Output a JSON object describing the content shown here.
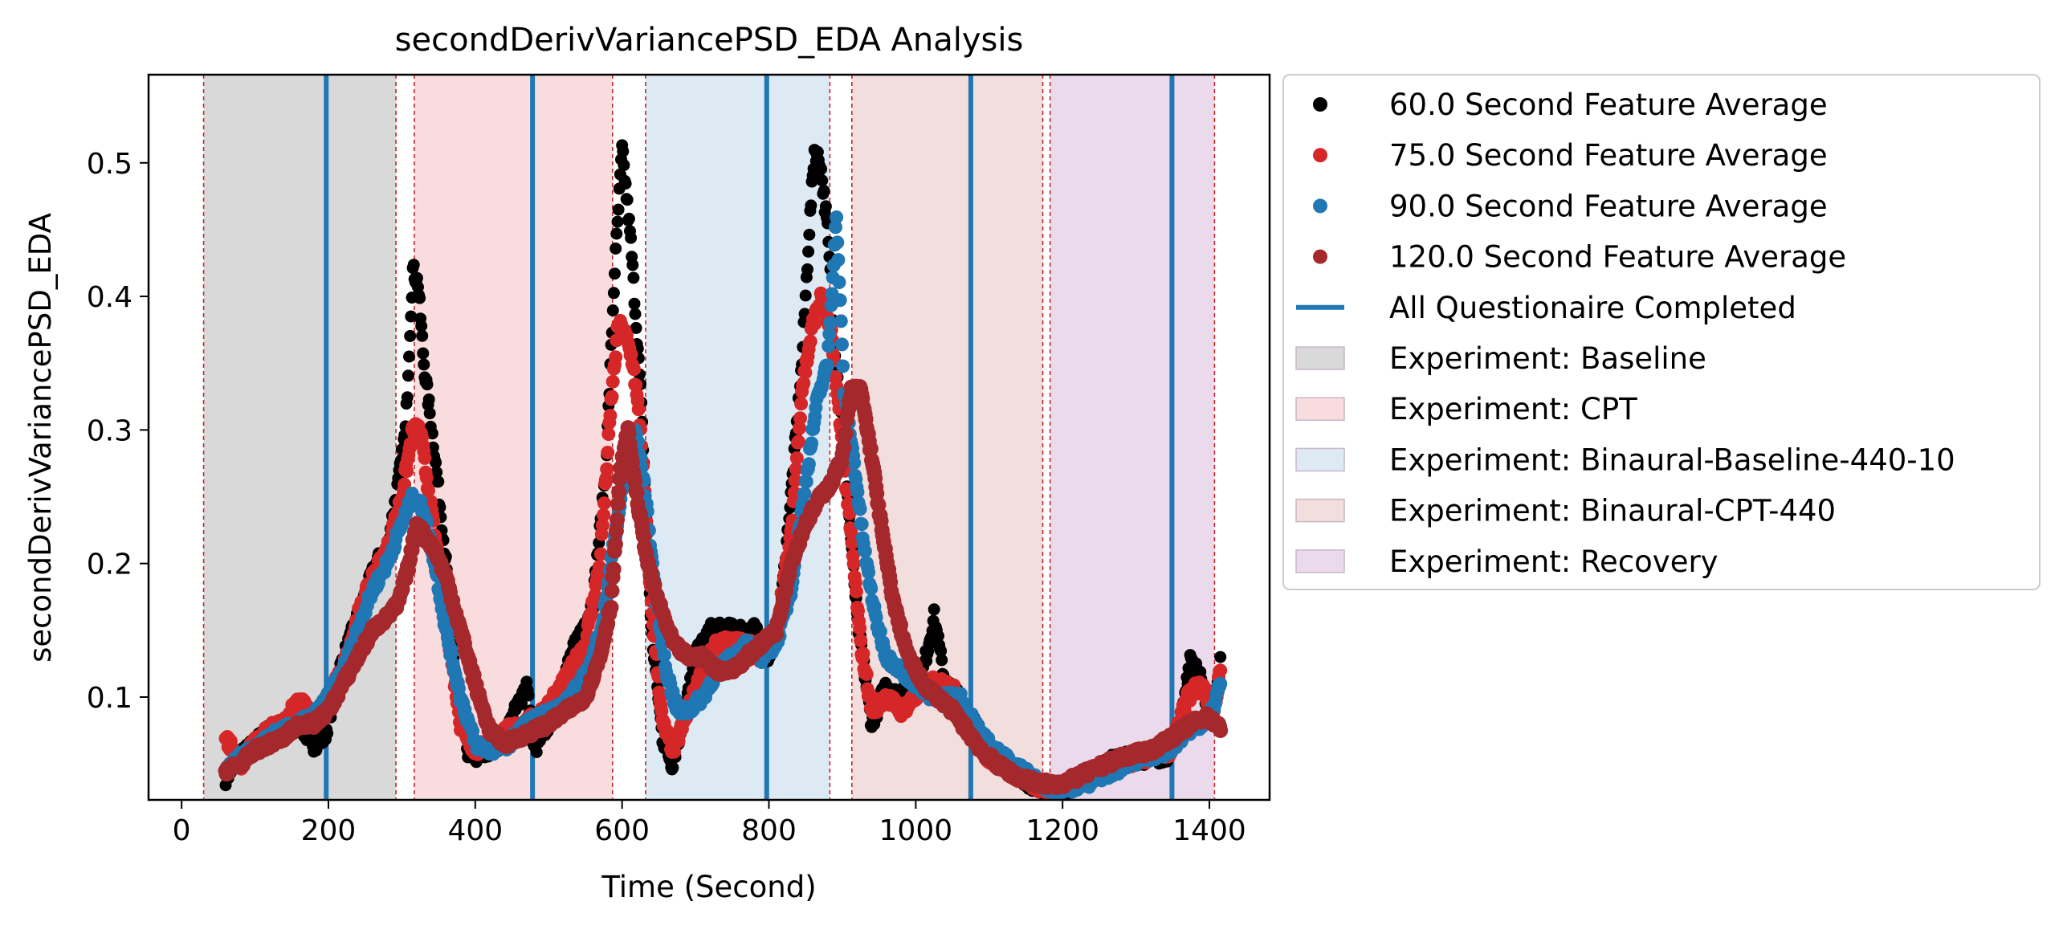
{
  "chart_data": {
    "type": "scatter",
    "title": "secondDerivVariancePSD_EDA Analysis",
    "xlabel": "Time (Second)",
    "ylabel": "secondDerivVariancePSD_EDA",
    "xlim": [
      -45,
      1482
    ],
    "ylim": [
      0.023,
      0.566
    ],
    "xticks": [
      0,
      200,
      400,
      600,
      800,
      1000,
      1200,
      1400
    ],
    "yticks": [
      0.1,
      0.2,
      0.3,
      0.4,
      0.5
    ],
    "grid": false,
    "legend_position": "outside-right",
    "regions": [
      {
        "name": "Experiment: Baseline",
        "start": 30,
        "end": 292,
        "color": "#d9d9d9"
      },
      {
        "name": "Experiment: CPT",
        "start": 317,
        "end": 587,
        "color": "#f9dcdd"
      },
      {
        "name": "Experiment: Binaural-Baseline-440-10",
        "start": 632,
        "end": 883,
        "color": "#dde9f3"
      },
      {
        "name": "Experiment: Binaural-CPT-440",
        "start": 913,
        "end": 1173,
        "color": "#f1dedd"
      },
      {
        "name": "Experiment: Recovery",
        "start": 1183,
        "end": 1407,
        "color": "#ebdaec"
      }
    ],
    "region_boundaries": [
      30,
      292,
      317,
      587,
      632,
      883,
      913,
      1173,
      1183,
      1407
    ],
    "questionnaire_lines": {
      "name": "All Questionaire Completed",
      "x": [
        197,
        478,
        797,
        1075,
        1349
      ],
      "color": "#1f77b4"
    },
    "series": [
      {
        "name": "60.0 Second Feature Average",
        "color": "#000000",
        "points": [
          [
            60,
            0.04
          ],
          [
            80,
            0.055
          ],
          [
            100,
            0.065
          ],
          [
            120,
            0.075
          ],
          [
            140,
            0.07
          ],
          [
            160,
            0.08
          ],
          [
            180,
            0.065
          ],
          [
            195,
            0.07
          ],
          [
            215,
            0.12
          ],
          [
            240,
            0.16
          ],
          [
            265,
            0.2
          ],
          [
            280,
            0.21
          ],
          [
            295,
            0.26
          ],
          [
            305,
            0.3
          ],
          [
            315,
            0.42
          ],
          [
            322,
            0.41
          ],
          [
            330,
            0.35
          ],
          [
            345,
            0.28
          ],
          [
            360,
            0.2
          ],
          [
            375,
            0.1
          ],
          [
            390,
            0.06
          ],
          [
            405,
            0.055
          ],
          [
            420,
            0.06
          ],
          [
            440,
            0.07
          ],
          [
            455,
            0.09
          ],
          [
            470,
            0.11
          ],
          [
            480,
            0.06
          ],
          [
            500,
            0.08
          ],
          [
            530,
            0.13
          ],
          [
            560,
            0.17
          ],
          [
            578,
            0.27
          ],
          [
            590,
            0.42
          ],
          [
            600,
            0.51
          ],
          [
            612,
            0.44
          ],
          [
            625,
            0.33
          ],
          [
            640,
            0.15
          ],
          [
            655,
            0.07
          ],
          [
            668,
            0.05
          ],
          [
            682,
            0.08
          ],
          [
            700,
            0.13
          ],
          [
            720,
            0.15
          ],
          [
            740,
            0.15
          ],
          [
            760,
            0.15
          ],
          [
            780,
            0.15
          ],
          [
            800,
            0.13
          ],
          [
            815,
            0.16
          ],
          [
            830,
            0.25
          ],
          [
            845,
            0.35
          ],
          [
            855,
            0.45
          ],
          [
            862,
            0.51
          ],
          [
            870,
            0.5
          ],
          [
            880,
            0.45
          ],
          [
            890,
            0.36
          ],
          [
            905,
            0.27
          ],
          [
            920,
            0.16
          ],
          [
            940,
            0.08
          ],
          [
            960,
            0.11
          ],
          [
            975,
            0.1
          ],
          [
            990,
            0.11
          ],
          [
            1010,
            0.12
          ],
          [
            1025,
            0.16
          ],
          [
            1040,
            0.11
          ],
          [
            1060,
            0.1
          ],
          [
            1080,
            0.08
          ],
          [
            1100,
            0.06
          ],
          [
            1130,
            0.045
          ],
          [
            1160,
            0.035
          ],
          [
            1190,
            0.03
          ],
          [
            1220,
            0.035
          ],
          [
            1260,
            0.05
          ],
          [
            1300,
            0.055
          ],
          [
            1340,
            0.055
          ],
          [
            1360,
            0.075
          ],
          [
            1375,
            0.13
          ],
          [
            1390,
            0.11
          ],
          [
            1405,
            0.08
          ],
          [
            1415,
            0.13
          ]
        ]
      },
      {
        "name": "75.0 Second Feature Average",
        "color": "#d62728",
        "points": [
          [
            60,
            0.07
          ],
          [
            80,
            0.05
          ],
          [
            100,
            0.065
          ],
          [
            120,
            0.075
          ],
          [
            140,
            0.08
          ],
          [
            160,
            0.1
          ],
          [
            180,
            0.08
          ],
          [
            200,
            0.1
          ],
          [
            220,
            0.12
          ],
          [
            240,
            0.16
          ],
          [
            260,
            0.19
          ],
          [
            280,
            0.21
          ],
          [
            300,
            0.25
          ],
          [
            315,
            0.3
          ],
          [
            325,
            0.3
          ],
          [
            335,
            0.26
          ],
          [
            350,
            0.2
          ],
          [
            365,
            0.14
          ],
          [
            380,
            0.08
          ],
          [
            400,
            0.06
          ],
          [
            420,
            0.065
          ],
          [
            445,
            0.075
          ],
          [
            470,
            0.08
          ],
          [
            495,
            0.09
          ],
          [
            520,
            0.11
          ],
          [
            550,
            0.14
          ],
          [
            570,
            0.2
          ],
          [
            585,
            0.32
          ],
          [
            595,
            0.38
          ],
          [
            605,
            0.37
          ],
          [
            615,
            0.35
          ],
          [
            625,
            0.3
          ],
          [
            640,
            0.17
          ],
          [
            655,
            0.08
          ],
          [
            670,
            0.06
          ],
          [
            690,
            0.09
          ],
          [
            710,
            0.12
          ],
          [
            730,
            0.14
          ],
          [
            750,
            0.14
          ],
          [
            770,
            0.14
          ],
          [
            790,
            0.13
          ],
          [
            810,
            0.15
          ],
          [
            830,
            0.22
          ],
          [
            845,
            0.33
          ],
          [
            860,
            0.38
          ],
          [
            872,
            0.4
          ],
          [
            885,
            0.37
          ],
          [
            898,
            0.3
          ],
          [
            912,
            0.22
          ],
          [
            925,
            0.14
          ],
          [
            940,
            0.09
          ],
          [
            960,
            0.1
          ],
          [
            980,
            0.09
          ],
          [
            1000,
            0.1
          ],
          [
            1020,
            0.11
          ],
          [
            1040,
            0.11
          ],
          [
            1060,
            0.1
          ],
          [
            1080,
            0.07
          ],
          [
            1100,
            0.055
          ],
          [
            1130,
            0.045
          ],
          [
            1160,
            0.035
          ],
          [
            1190,
            0.03
          ],
          [
            1230,
            0.04
          ],
          [
            1270,
            0.05
          ],
          [
            1310,
            0.055
          ],
          [
            1345,
            0.06
          ],
          [
            1370,
            0.1
          ],
          [
            1390,
            0.11
          ],
          [
            1405,
            0.085
          ],
          [
            1415,
            0.12
          ]
        ]
      },
      {
        "name": "90.0 Second Feature Average",
        "color": "#1f77b4",
        "points": [
          [
            60,
            0.045
          ],
          [
            80,
            0.055
          ],
          [
            100,
            0.06
          ],
          [
            120,
            0.07
          ],
          [
            140,
            0.075
          ],
          [
            160,
            0.08
          ],
          [
            180,
            0.085
          ],
          [
            200,
            0.1
          ],
          [
            220,
            0.12
          ],
          [
            240,
            0.15
          ],
          [
            260,
            0.18
          ],
          [
            280,
            0.2
          ],
          [
            300,
            0.23
          ],
          [
            315,
            0.25
          ],
          [
            330,
            0.24
          ],
          [
            345,
            0.2
          ],
          [
            360,
            0.15
          ],
          [
            380,
            0.1
          ],
          [
            400,
            0.065
          ],
          [
            420,
            0.06
          ],
          [
            445,
            0.065
          ],
          [
            470,
            0.08
          ],
          [
            490,
            0.085
          ],
          [
            510,
            0.09
          ],
          [
            530,
            0.1
          ],
          [
            555,
            0.12
          ],
          [
            575,
            0.16
          ],
          [
            590,
            0.22
          ],
          [
            605,
            0.27
          ],
          [
            618,
            0.3
          ],
          [
            630,
            0.26
          ],
          [
            645,
            0.18
          ],
          [
            660,
            0.12
          ],
          [
            675,
            0.09
          ],
          [
            690,
            0.09
          ],
          [
            710,
            0.1
          ],
          [
            730,
            0.12
          ],
          [
            750,
            0.13
          ],
          [
            770,
            0.14
          ],
          [
            790,
            0.13
          ],
          [
            810,
            0.14
          ],
          [
            830,
            0.18
          ],
          [
            850,
            0.26
          ],
          [
            865,
            0.32
          ],
          [
            880,
            0.35
          ],
          [
            892,
            0.46
          ],
          [
            902,
            0.33
          ],
          [
            915,
            0.28
          ],
          [
            930,
            0.21
          ],
          [
            945,
            0.16
          ],
          [
            960,
            0.13
          ],
          [
            980,
            0.12
          ],
          [
            1000,
            0.11
          ],
          [
            1020,
            0.1
          ],
          [
            1040,
            0.1
          ],
          [
            1060,
            0.1
          ],
          [
            1080,
            0.08
          ],
          [
            1100,
            0.065
          ],
          [
            1130,
            0.05
          ],
          [
            1160,
            0.04
          ],
          [
            1190,
            0.03
          ],
          [
            1230,
            0.035
          ],
          [
            1270,
            0.045
          ],
          [
            1310,
            0.055
          ],
          [
            1345,
            0.06
          ],
          [
            1370,
            0.075
          ],
          [
            1390,
            0.08
          ],
          [
            1405,
            0.09
          ],
          [
            1415,
            0.11
          ]
        ]
      },
      {
        "name": "120.0 Second Feature Average",
        "color": "#a5282c",
        "points": [
          [
            60,
            0.045
          ],
          [
            80,
            0.05
          ],
          [
            100,
            0.06
          ],
          [
            120,
            0.065
          ],
          [
            140,
            0.07
          ],
          [
            160,
            0.08
          ],
          [
            180,
            0.08
          ],
          [
            200,
            0.09
          ],
          [
            220,
            0.11
          ],
          [
            240,
            0.13
          ],
          [
            260,
            0.15
          ],
          [
            280,
            0.16
          ],
          [
            295,
            0.17
          ],
          [
            310,
            0.2
          ],
          [
            320,
            0.23
          ],
          [
            332,
            0.22
          ],
          [
            345,
            0.21
          ],
          [
            360,
            0.19
          ],
          [
            375,
            0.16
          ],
          [
            390,
            0.13
          ],
          [
            405,
            0.1
          ],
          [
            420,
            0.075
          ],
          [
            440,
            0.065
          ],
          [
            460,
            0.07
          ],
          [
            480,
            0.075
          ],
          [
            500,
            0.08
          ],
          [
            525,
            0.09
          ],
          [
            550,
            0.1
          ],
          [
            570,
            0.13
          ],
          [
            585,
            0.17
          ],
          [
            598,
            0.27
          ],
          [
            608,
            0.3
          ],
          [
            620,
            0.25
          ],
          [
            635,
            0.2
          ],
          [
            650,
            0.17
          ],
          [
            670,
            0.14
          ],
          [
            690,
            0.13
          ],
          [
            710,
            0.13
          ],
          [
            730,
            0.12
          ],
          [
            750,
            0.12
          ],
          [
            770,
            0.13
          ],
          [
            790,
            0.14
          ],
          [
            810,
            0.15
          ],
          [
            830,
            0.2
          ],
          [
            850,
            0.23
          ],
          [
            870,
            0.25
          ],
          [
            885,
            0.26
          ],
          [
            900,
            0.28
          ],
          [
            912,
            0.33
          ],
          [
            925,
            0.33
          ],
          [
            940,
            0.28
          ],
          [
            955,
            0.22
          ],
          [
            970,
            0.17
          ],
          [
            990,
            0.13
          ],
          [
            1010,
            0.11
          ],
          [
            1030,
            0.1
          ],
          [
            1050,
            0.09
          ],
          [
            1070,
            0.075
          ],
          [
            1090,
            0.06
          ],
          [
            1110,
            0.05
          ],
          [
            1140,
            0.04
          ],
          [
            1170,
            0.035
          ],
          [
            1200,
            0.035
          ],
          [
            1240,
            0.045
          ],
          [
            1280,
            0.055
          ],
          [
            1320,
            0.06
          ],
          [
            1350,
            0.07
          ],
          [
            1375,
            0.08
          ],
          [
            1395,
            0.085
          ],
          [
            1410,
            0.08
          ],
          [
            1415,
            0.075
          ]
        ]
      }
    ]
  }
}
